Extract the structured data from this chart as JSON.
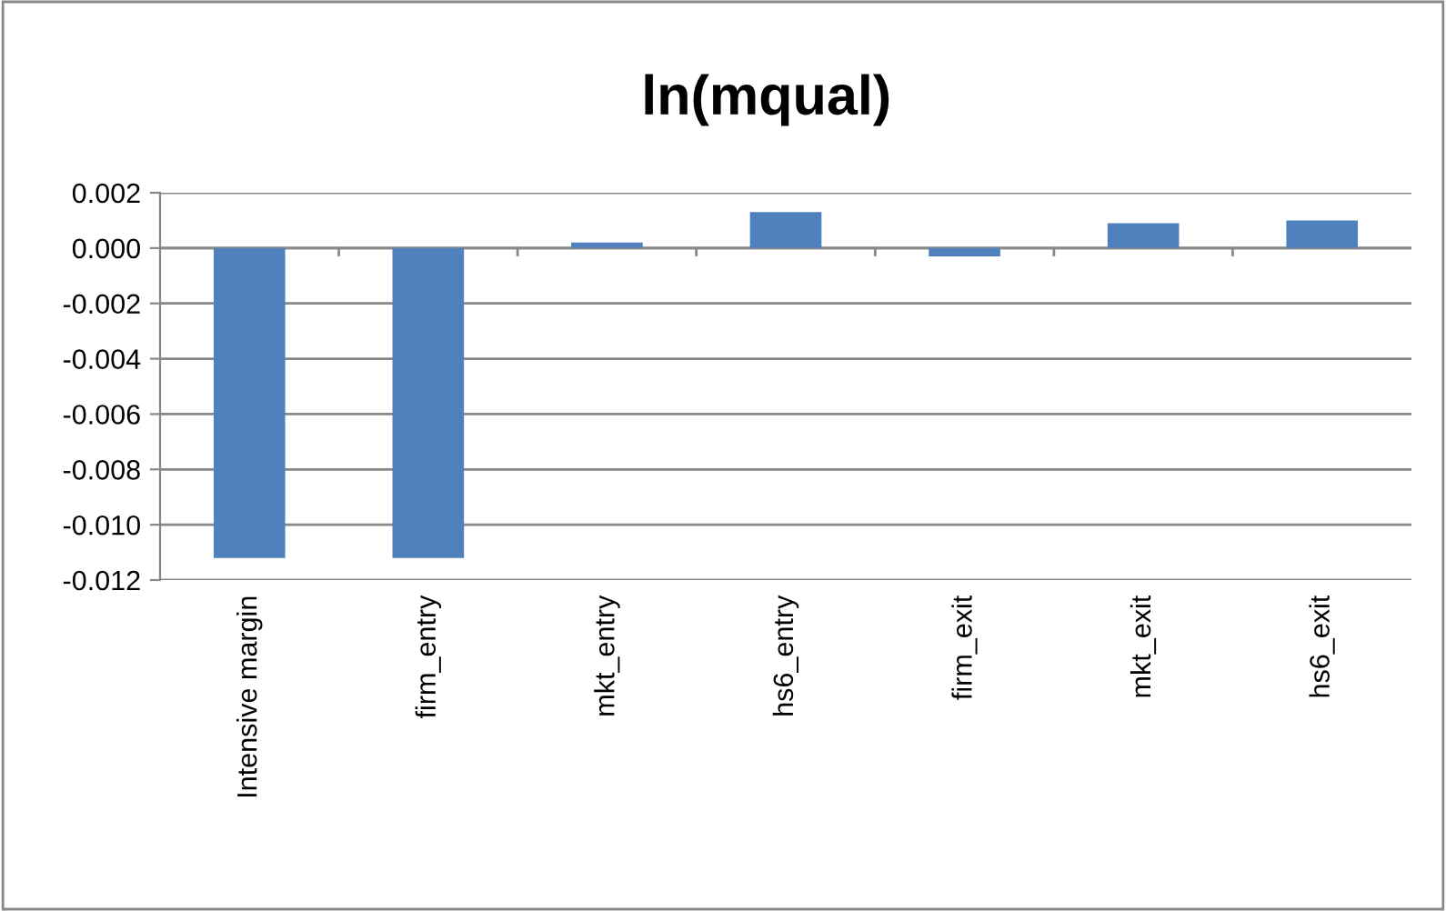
{
  "chart_data": {
    "type": "bar",
    "title": "ln(mqual)",
    "categories": [
      "Intensive margin",
      "firm_entry",
      "mkt_entry",
      "hs6_entry",
      "firm_exit",
      "mkt_exit",
      "hs6_exit"
    ],
    "values": [
      -0.0112,
      -0.0112,
      0.0002,
      0.0013,
      -0.0003,
      0.0009,
      0.001
    ],
    "color": "#4f81bd",
    "ylim": [
      -0.012,
      0.002
    ],
    "yticks": [
      {
        "value": -0.012,
        "label": "-0.012"
      },
      {
        "value": -0.01,
        "label": "-0.010"
      },
      {
        "value": -0.008,
        "label": "-0.008"
      },
      {
        "value": -0.006,
        "label": "-0.006"
      },
      {
        "value": -0.004,
        "label": "-0.004"
      },
      {
        "value": -0.002,
        "label": "-0.002"
      },
      {
        "value": 0,
        "label": "0.000"
      },
      {
        "value": 0.002,
        "label": "0.002"
      }
    ],
    "grid": "y",
    "legend": false
  }
}
